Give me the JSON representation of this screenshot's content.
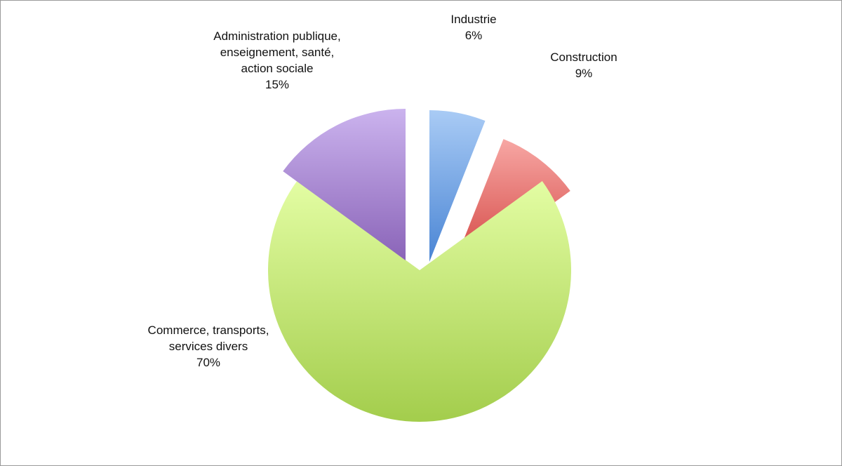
{
  "chart_data": {
    "type": "pie",
    "title": "",
    "unit": "%",
    "slices": [
      {
        "label": [
          "Industrie"
        ],
        "value_text": "6%",
        "value": 6,
        "color_top": "#a9cbf5",
        "color_bottom": "#4a85d4"
      },
      {
        "label": [
          "Construction"
        ],
        "value_text": "9%",
        "value": 9,
        "color_top": "#f7a7a4",
        "color_bottom": "#cf3a36"
      },
      {
        "label": [
          "Commerce, transports,",
          "services divers"
        ],
        "value_text": "70%",
        "value": 70,
        "color_top": "#e3fda3",
        "color_bottom": "#a3cd4c"
      },
      {
        "label": [
          "Administration publique,",
          "enseignement, santé,",
          "action sociale"
        ],
        "value_text": "15%",
        "value": 15,
        "color_top": "#cbb3ee",
        "color_bottom": "#8a64b8"
      }
    ]
  }
}
